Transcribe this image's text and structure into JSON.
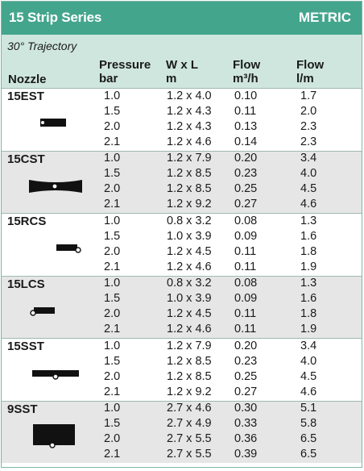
{
  "title": "15 Strip Series",
  "unit_label": "METRIC",
  "trajectory": "30° Trajectory",
  "columns": {
    "nozzle": "Nozzle",
    "pressure_1": "Pressure",
    "pressure_2": "bar",
    "wxl_1": "W x L",
    "wxl_2": "m",
    "flow_m3h_1": "Flow",
    "flow_m3h_2": "m³/h",
    "flow_lm_1": "Flow",
    "flow_lm_2": "l/m"
  },
  "nozzles": [
    {
      "name": "15EST",
      "icon": "end-strip-icon",
      "rows": [
        {
          "pressure": "1.0",
          "wxl": "1.2 x 4.0",
          "flow_m3h": "0.10",
          "flow_lm": "1.7"
        },
        {
          "pressure": "1.5",
          "wxl": "1.2 x 4.3",
          "flow_m3h": "0.11",
          "flow_lm": "2.0"
        },
        {
          "pressure": "2.0",
          "wxl": "1.2 x 4.3",
          "flow_m3h": "0.13",
          "flow_lm": "2.3"
        },
        {
          "pressure": "2.1",
          "wxl": "1.2 x 4.6",
          "flow_m3h": "0.14",
          "flow_lm": "2.3"
        }
      ]
    },
    {
      "name": "15CST",
      "icon": "center-strip-icon",
      "rows": [
        {
          "pressure": "1.0",
          "wxl": "1.2 x 7.9",
          "flow_m3h": "0.20",
          "flow_lm": "3.4"
        },
        {
          "pressure": "1.5",
          "wxl": "1.2 x 8.5",
          "flow_m3h": "0.23",
          "flow_lm": "4.0"
        },
        {
          "pressure": "2.0",
          "wxl": "1.2 x 8.5",
          "flow_m3h": "0.25",
          "flow_lm": "4.5"
        },
        {
          "pressure": "2.1",
          "wxl": "1.2 x 9.2",
          "flow_m3h": "0.27",
          "flow_lm": "4.6"
        }
      ]
    },
    {
      "name": "15RCS",
      "icon": "right-corner-strip-icon",
      "rows": [
        {
          "pressure": "1.0",
          "wxl": "0.8 x 3.2",
          "flow_m3h": "0.08",
          "flow_lm": "1.3"
        },
        {
          "pressure": "1.5",
          "wxl": "1.0 x 3.9",
          "flow_m3h": "0.09",
          "flow_lm": "1.6"
        },
        {
          "pressure": "2.0",
          "wxl": "1.2 x 4.5",
          "flow_m3h": "0.11",
          "flow_lm": "1.8"
        },
        {
          "pressure": "2.1",
          "wxl": "1.2 x 4.6",
          "flow_m3h": "0.11",
          "flow_lm": "1.9"
        }
      ]
    },
    {
      "name": "15LCS",
      "icon": "left-corner-strip-icon",
      "rows": [
        {
          "pressure": "1.0",
          "wxl": "0.8 x 3.2",
          "flow_m3h": "0.08",
          "flow_lm": "1.3"
        },
        {
          "pressure": "1.5",
          "wxl": "1.0 x 3.9",
          "flow_m3h": "0.09",
          "flow_lm": "1.6"
        },
        {
          "pressure": "2.0",
          "wxl": "1.2 x 4.5",
          "flow_m3h": "0.11",
          "flow_lm": "1.8"
        },
        {
          "pressure": "2.1",
          "wxl": "1.2 x 4.6",
          "flow_m3h": "0.11",
          "flow_lm": "1.9"
        }
      ]
    },
    {
      "name": "15SST",
      "icon": "side-strip-icon",
      "rows": [
        {
          "pressure": "1.0",
          "wxl": "1.2 x 7.9",
          "flow_m3h": "0.20",
          "flow_lm": "3.4"
        },
        {
          "pressure": "1.5",
          "wxl": "1.2 x 8.5",
          "flow_m3h": "0.23",
          "flow_lm": "4.0"
        },
        {
          "pressure": "2.0",
          "wxl": "1.2 x 8.5",
          "flow_m3h": "0.25",
          "flow_lm": "4.5"
        },
        {
          "pressure": "2.1",
          "wxl": "1.2 x 9.2",
          "flow_m3h": "0.27",
          "flow_lm": "4.6"
        }
      ]
    },
    {
      "name": "9SST",
      "icon": "side-strip-square-icon",
      "rows": [
        {
          "pressure": "1.0",
          "wxl": "2.7 x 4.6",
          "flow_m3h": "0.30",
          "flow_lm": "5.1"
        },
        {
          "pressure": "1.5",
          "wxl": "2.7 x 4.9",
          "flow_m3h": "0.33",
          "flow_lm": "5.8"
        },
        {
          "pressure": "2.0",
          "wxl": "2.7 x 5.5",
          "flow_m3h": "0.36",
          "flow_lm": "6.5"
        },
        {
          "pressure": "2.1",
          "wxl": "2.7 x 5.5",
          "flow_m3h": "0.39",
          "flow_lm": "6.5"
        }
      ]
    }
  ]
}
